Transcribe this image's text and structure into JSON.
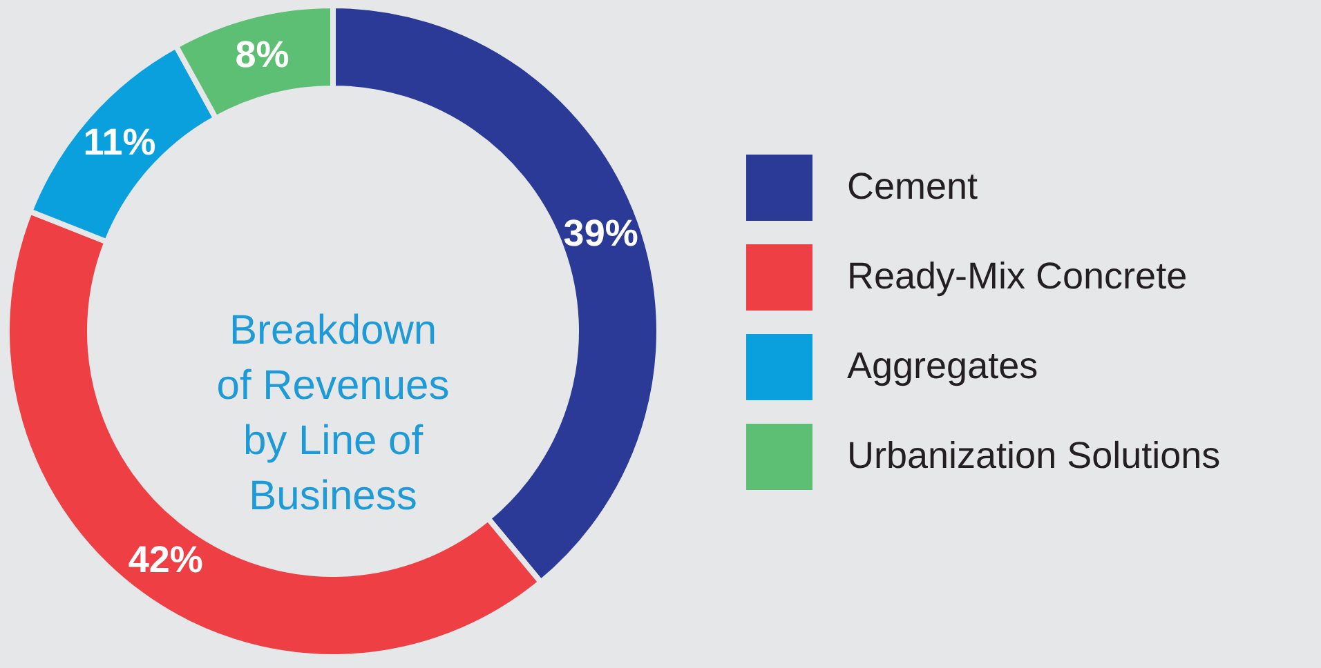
{
  "chart_data": {
    "type": "donut",
    "title": "Breakdown of Revenues by Line of Business",
    "categories": [
      "Cement",
      "Ready-Mix Concrete",
      "Aggregates",
      "Urbanization Solutions"
    ],
    "values": [
      39,
      42,
      11,
      8
    ],
    "colors": [
      "#2b3a97",
      "#ee4044",
      "#0a9fdd",
      "#5dbf74"
    ],
    "value_labels": [
      "39%",
      "42%",
      "11%",
      "8%"
    ],
    "legend": "right"
  }
}
